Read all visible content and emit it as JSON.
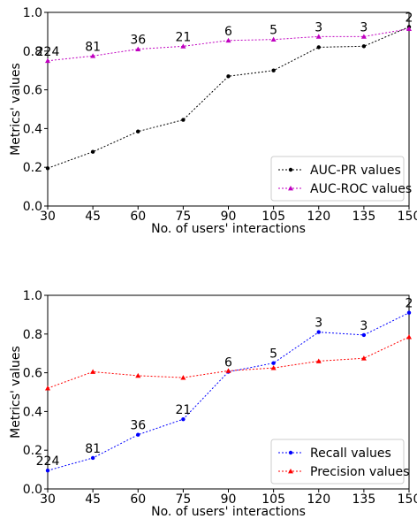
{
  "chart_data": [
    {
      "type": "line",
      "xlabel": "No. of users' interactions",
      "ylabel": "Metrics' values",
      "x": [
        30,
        45,
        60,
        75,
        90,
        105,
        120,
        135,
        150
      ],
      "xticks": [
        "30",
        "45",
        "60",
        "75",
        "90",
        "105",
        "120",
        "135",
        "150"
      ],
      "yticks": [
        "0.0",
        "0.2",
        "0.4",
        "0.6",
        "0.8",
        "1.0"
      ],
      "ylim": [
        0,
        1
      ],
      "legend_position": "lower-right",
      "series": [
        {
          "name": "AUC-PR values",
          "color": "#000000",
          "marker": "circle",
          "values": [
            0.195,
            0.28,
            0.385,
            0.445,
            0.67,
            0.7,
            0.82,
            0.825,
            0.925
          ]
        },
        {
          "name": "AUC-ROC values",
          "color": "#c000c0",
          "marker": "triangle",
          "values": [
            0.75,
            0.775,
            0.81,
            0.825,
            0.855,
            0.86,
            0.875,
            0.875,
            0.915
          ]
        }
      ],
      "annotations": [
        {
          "x": 30,
          "y": 0.75,
          "text": "224"
        },
        {
          "x": 45,
          "y": 0.775,
          "text": "81"
        },
        {
          "x": 60,
          "y": 0.81,
          "text": "36"
        },
        {
          "x": 75,
          "y": 0.825,
          "text": "21"
        },
        {
          "x": 90,
          "y": 0.855,
          "text": "6"
        },
        {
          "x": 105,
          "y": 0.86,
          "text": "5"
        },
        {
          "x": 120,
          "y": 0.875,
          "text": "3"
        },
        {
          "x": 135,
          "y": 0.875,
          "text": "3"
        },
        {
          "x": 150,
          "y": 0.925,
          "text": "2"
        }
      ]
    },
    {
      "type": "line",
      "xlabel": "No. of users' interactions",
      "ylabel": "Metrics' values",
      "x": [
        30,
        45,
        60,
        75,
        90,
        105,
        120,
        135,
        150
      ],
      "xticks": [
        "30",
        "45",
        "60",
        "75",
        "90",
        "105",
        "120",
        "135",
        "150"
      ],
      "yticks": [
        "0.0",
        "0.2",
        "0.4",
        "0.6",
        "0.8",
        "1.0"
      ],
      "ylim": [
        0,
        1
      ],
      "legend_position": "lower-right",
      "series": [
        {
          "name": "Recall values",
          "color": "#0000ff",
          "marker": "circle",
          "values": [
            0.095,
            0.16,
            0.28,
            0.36,
            0.605,
            0.65,
            0.81,
            0.795,
            0.91
          ]
        },
        {
          "name": "Precision values",
          "color": "#ff0000",
          "marker": "triangle",
          "values": [
            0.52,
            0.605,
            0.585,
            0.575,
            0.61,
            0.625,
            0.66,
            0.675,
            0.785
          ]
        }
      ],
      "annotations": [
        {
          "x": 30,
          "y": 0.095,
          "text": "224"
        },
        {
          "x": 45,
          "y": 0.16,
          "text": "81"
        },
        {
          "x": 60,
          "y": 0.28,
          "text": "36"
        },
        {
          "x": 75,
          "y": 0.36,
          "text": "21"
        },
        {
          "x": 90,
          "y": 0.605,
          "text": "6"
        },
        {
          "x": 105,
          "y": 0.65,
          "text": "5"
        },
        {
          "x": 120,
          "y": 0.81,
          "text": "3"
        },
        {
          "x": 135,
          "y": 0.795,
          "text": "3"
        },
        {
          "x": 150,
          "y": 0.91,
          "text": "2"
        }
      ]
    }
  ]
}
